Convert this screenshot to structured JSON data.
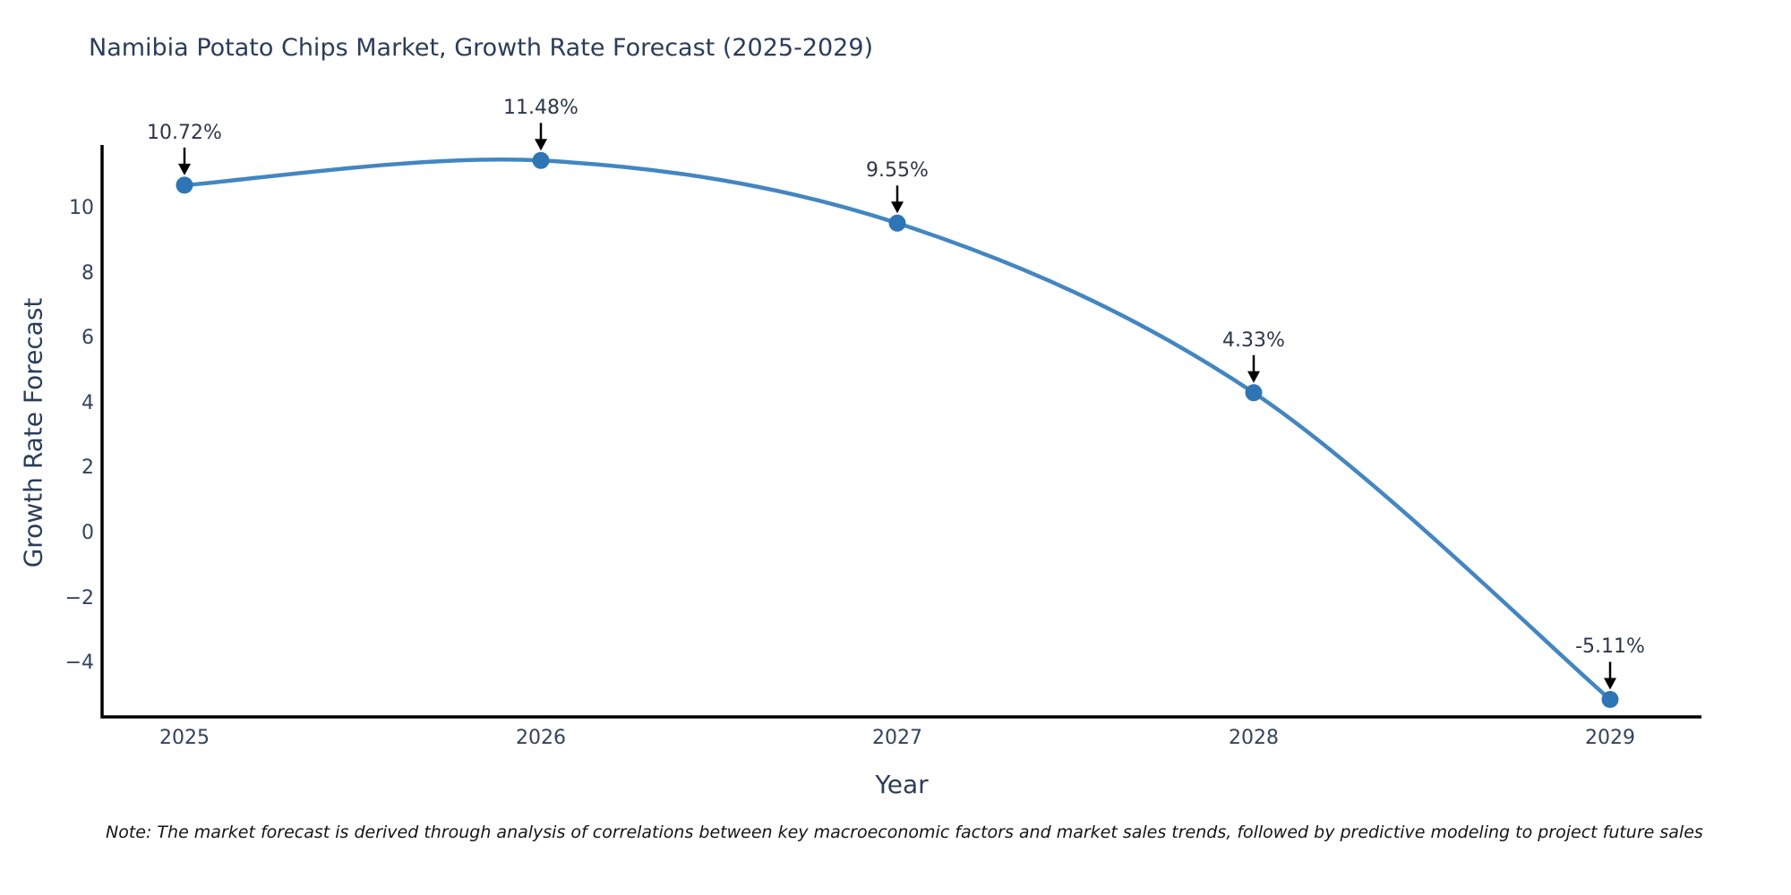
{
  "title": "Namibia Potato Chips Market, Growth Rate Forecast (2025-2029)",
  "note": "Note: The market forecast is derived through analysis of correlations between key macroeconomic factors and market sales trends, followed by predictive modeling to project future sales",
  "chart_data": {
    "type": "line",
    "title": "Namibia Potato Chips Market, Growth Rate Forecast (2025-2029)",
    "xlabel": "Year",
    "ylabel": "Growth Rate Forecast",
    "x": [
      2025,
      2026,
      2027,
      2028,
      2029
    ],
    "categories": [
      "2025",
      "2026",
      "2027",
      "2028",
      "2029"
    ],
    "values": [
      10.72,
      11.48,
      9.55,
      4.33,
      -5.11
    ],
    "point_labels": [
      "10.72%",
      "11.48%",
      "9.55%",
      "4.33%",
      "-5.11%"
    ],
    "y_ticks": [
      10,
      8,
      6,
      4,
      2,
      0,
      -2,
      -4
    ],
    "y_tick_labels": [
      "10",
      "8",
      "6",
      "4",
      "2",
      "0",
      "−2",
      "−4"
    ],
    "ylim": [
      -5.6,
      12.1
    ],
    "grid": false,
    "legend": false,
    "marker": "circle",
    "annotation_arrows": true,
    "colors": {
      "line": "#4386c1",
      "marker": "#2e75b5",
      "arrow": "#000000",
      "spine": "#000000",
      "text": "#2a3f5f"
    }
  }
}
